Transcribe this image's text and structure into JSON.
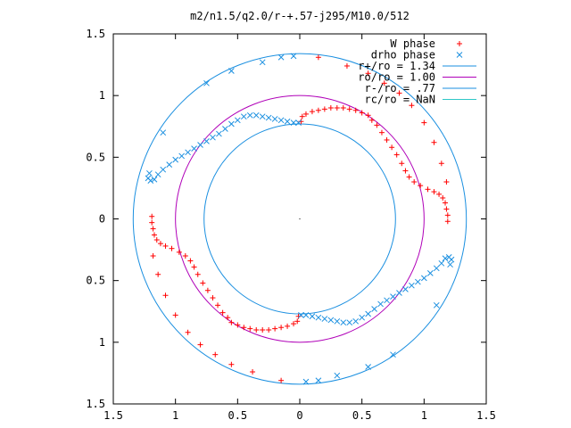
{
  "chart_data": {
    "type": "scatter",
    "title": "m2/n1.5/q2.0/r-+.57-j295/M10.0/512",
    "xlabel": "",
    "ylabel": "",
    "xlim": [
      -1.5,
      1.5
    ],
    "ylim": [
      -1.5,
      1.5
    ],
    "x_ticks": [
      -1.5,
      -1,
      -0.5,
      0,
      0.5,
      1,
      1.5
    ],
    "y_ticks": [
      -1.5,
      -1,
      -0.5,
      0,
      0.5,
      1,
      1.5
    ],
    "x_tick_labels": [
      "1.5",
      "1",
      "0.5",
      "0",
      "0.5",
      "1",
      "1.5"
    ],
    "y_tick_labels": [
      "1.5",
      "1",
      "0.5",
      "0",
      "0.5",
      "1",
      "1.5"
    ],
    "grid": false,
    "legend_position": "top-right",
    "series": [
      {
        "name": "W phase",
        "kind": "points",
        "marker": "plus",
        "color": "#ff0000",
        "points": [
          [
            0.01,
            0.79
          ],
          [
            0.02,
            0.83
          ],
          [
            0.05,
            0.85
          ],
          [
            0.1,
            0.87
          ],
          [
            0.15,
            0.88
          ],
          [
            0.2,
            0.89
          ],
          [
            0.25,
            0.9
          ],
          [
            0.3,
            0.9
          ],
          [
            0.35,
            0.9
          ],
          [
            0.4,
            0.89
          ],
          [
            0.45,
            0.88
          ],
          [
            0.5,
            0.86
          ],
          [
            0.55,
            0.84
          ],
          [
            0.58,
            0.8
          ],
          [
            0.62,
            0.76
          ],
          [
            0.66,
            0.7
          ],
          [
            0.7,
            0.64
          ],
          [
            0.74,
            0.58
          ],
          [
            0.78,
            0.52
          ],
          [
            0.82,
            0.45
          ],
          [
            0.85,
            0.39
          ],
          [
            0.88,
            0.34
          ],
          [
            0.92,
            0.3
          ],
          [
            0.97,
            0.27
          ],
          [
            1.03,
            0.24
          ],
          [
            1.08,
            0.22
          ],
          [
            1.12,
            0.2
          ],
          [
            1.15,
            0.17
          ],
          [
            1.17,
            0.13
          ],
          [
            1.18,
            0.08
          ],
          [
            1.19,
            0.03
          ],
          [
            1.19,
            -0.02
          ],
          [
            0.15,
            1.31
          ],
          [
            0.38,
            1.24
          ],
          [
            0.55,
            1.18
          ],
          [
            0.68,
            1.1
          ],
          [
            0.8,
            1.02
          ],
          [
            0.9,
            0.92
          ],
          [
            1,
            0.78
          ],
          [
            1.08,
            0.62
          ],
          [
            1.14,
            0.45
          ],
          [
            1.18,
            0.3
          ],
          [
            -0.01,
            -0.79
          ],
          [
            -0.02,
            -0.83
          ],
          [
            -0.05,
            -0.85
          ],
          [
            -0.1,
            -0.87
          ],
          [
            -0.15,
            -0.88
          ],
          [
            -0.2,
            -0.89
          ],
          [
            -0.25,
            -0.9
          ],
          [
            -0.3,
            -0.9
          ],
          [
            -0.35,
            -0.9
          ],
          [
            -0.4,
            -0.89
          ],
          [
            -0.45,
            -0.88
          ],
          [
            -0.5,
            -0.86
          ],
          [
            -0.55,
            -0.84
          ],
          [
            -0.58,
            -0.8
          ],
          [
            -0.62,
            -0.76
          ],
          [
            -0.66,
            -0.7
          ],
          [
            -0.7,
            -0.64
          ],
          [
            -0.74,
            -0.58
          ],
          [
            -0.78,
            -0.52
          ],
          [
            -0.82,
            -0.45
          ],
          [
            -0.85,
            -0.39
          ],
          [
            -0.88,
            -0.34
          ],
          [
            -0.92,
            -0.3
          ],
          [
            -0.97,
            -0.27
          ],
          [
            -1.03,
            -0.24
          ],
          [
            -1.08,
            -0.22
          ],
          [
            -1.12,
            -0.2
          ],
          [
            -1.15,
            -0.17
          ],
          [
            -1.17,
            -0.13
          ],
          [
            -1.18,
            -0.08
          ],
          [
            -1.19,
            -0.03
          ],
          [
            -1.19,
            0.02
          ],
          [
            -0.15,
            -1.31
          ],
          [
            -0.38,
            -1.24
          ],
          [
            -0.55,
            -1.18
          ],
          [
            -0.68,
            -1.1
          ],
          [
            -0.8,
            -1.02
          ],
          [
            -0.9,
            -0.92
          ],
          [
            -1,
            -0.78
          ],
          [
            -1.08,
            -0.62
          ],
          [
            -1.14,
            -0.45
          ],
          [
            -1.18,
            -0.3
          ]
        ]
      },
      {
        "name": "drho phase",
        "kind": "points",
        "marker": "x",
        "color": "#1a8fe0",
        "points": [
          [
            0.01,
            -0.78
          ],
          [
            0.05,
            -0.78
          ],
          [
            0.1,
            -0.79
          ],
          [
            0.15,
            -0.8
          ],
          [
            0.2,
            -0.81
          ],
          [
            0.25,
            -0.82
          ],
          [
            0.3,
            -0.83
          ],
          [
            0.35,
            -0.84
          ],
          [
            0.4,
            -0.84
          ],
          [
            0.45,
            -0.83
          ],
          [
            0.5,
            -0.8
          ],
          [
            0.55,
            -0.77
          ],
          [
            0.6,
            -0.73
          ],
          [
            0.65,
            -0.69
          ],
          [
            0.7,
            -0.66
          ],
          [
            0.75,
            -0.63
          ],
          [
            0.8,
            -0.6
          ],
          [
            0.85,
            -0.57
          ],
          [
            0.9,
            -0.54
          ],
          [
            0.95,
            -0.51
          ],
          [
            1,
            -0.48
          ],
          [
            1.05,
            -0.44
          ],
          [
            1.1,
            -0.4
          ],
          [
            1.14,
            -0.36
          ],
          [
            1.17,
            -0.32
          ],
          [
            1.2,
            -0.31
          ],
          [
            1.22,
            -0.33
          ],
          [
            1.21,
            -0.37
          ],
          [
            0.05,
            -1.32
          ],
          [
            0.15,
            -1.31
          ],
          [
            0.3,
            -1.27
          ],
          [
            0.55,
            -1.2
          ],
          [
            0.75,
            -1.1
          ],
          [
            1.1,
            -0.7
          ],
          [
            -0.01,
            0.78
          ],
          [
            -0.05,
            0.78
          ],
          [
            -0.1,
            0.79
          ],
          [
            -0.15,
            0.8
          ],
          [
            -0.2,
            0.81
          ],
          [
            -0.25,
            0.82
          ],
          [
            -0.3,
            0.83
          ],
          [
            -0.35,
            0.84
          ],
          [
            -0.4,
            0.84
          ],
          [
            -0.45,
            0.83
          ],
          [
            -0.5,
            0.8
          ],
          [
            -0.55,
            0.77
          ],
          [
            -0.6,
            0.73
          ],
          [
            -0.65,
            0.69
          ],
          [
            -0.7,
            0.66
          ],
          [
            -0.75,
            0.63
          ],
          [
            -0.8,
            0.6
          ],
          [
            -0.85,
            0.57
          ],
          [
            -0.9,
            0.54
          ],
          [
            -0.95,
            0.51
          ],
          [
            -1,
            0.48
          ],
          [
            -1.05,
            0.44
          ],
          [
            -1.1,
            0.4
          ],
          [
            -1.14,
            0.36
          ],
          [
            -1.17,
            0.32
          ],
          [
            -1.2,
            0.31
          ],
          [
            -1.22,
            0.33
          ],
          [
            -1.21,
            0.37
          ],
          [
            -0.05,
            1.32
          ],
          [
            -0.15,
            1.31
          ],
          [
            -0.3,
            1.27
          ],
          [
            -0.55,
            1.2
          ],
          [
            -0.75,
            1.1
          ],
          [
            -1.1,
            0.7
          ]
        ]
      },
      {
        "name": "r+/ro = 1.34",
        "kind": "circle",
        "radius": 1.34,
        "color": "#1a8fe0"
      },
      {
        "name": "ro/ro = 1.00",
        "kind": "circle",
        "radius": 1.0,
        "color": "#b000b8"
      },
      {
        "name": "r-/ro = .77",
        "kind": "circle",
        "radius": 0.77,
        "color": "#1a8fe0"
      },
      {
        "name": "rc/ro = NaN",
        "kind": "circle",
        "radius": null,
        "color": "#2fc8c8"
      }
    ]
  }
}
